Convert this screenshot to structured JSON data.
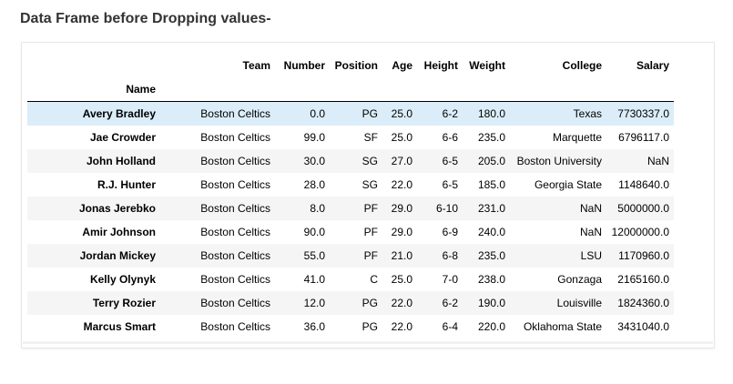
{
  "heading": "Data Frame before Dropping values-",
  "table": {
    "index_name": "Name",
    "columns": [
      "Team",
      "Number",
      "Position",
      "Age",
      "Height",
      "Weight",
      "College",
      "Salary"
    ],
    "rows": [
      {
        "name": "Avery Bradley",
        "cells": [
          "Boston Celtics",
          "0.0",
          "PG",
          "25.0",
          "6-2",
          "180.0",
          "Texas",
          "7730337.0"
        ]
      },
      {
        "name": "Jae Crowder",
        "cells": [
          "Boston Celtics",
          "99.0",
          "SF",
          "25.0",
          "6-6",
          "235.0",
          "Marquette",
          "6796117.0"
        ]
      },
      {
        "name": "John Holland",
        "cells": [
          "Boston Celtics",
          "30.0",
          "SG",
          "27.0",
          "6-5",
          "205.0",
          "Boston University",
          "NaN"
        ]
      },
      {
        "name": "R.J. Hunter",
        "cells": [
          "Boston Celtics",
          "28.0",
          "SG",
          "22.0",
          "6-5",
          "185.0",
          "Georgia State",
          "1148640.0"
        ]
      },
      {
        "name": "Jonas Jerebko",
        "cells": [
          "Boston Celtics",
          "8.0",
          "PF",
          "29.0",
          "6-10",
          "231.0",
          "NaN",
          "5000000.0"
        ]
      },
      {
        "name": "Amir Johnson",
        "cells": [
          "Boston Celtics",
          "90.0",
          "PF",
          "29.0",
          "6-9",
          "240.0",
          "NaN",
          "12000000.0"
        ]
      },
      {
        "name": "Jordan Mickey",
        "cells": [
          "Boston Celtics",
          "55.0",
          "PF",
          "21.0",
          "6-8",
          "235.0",
          "LSU",
          "1170960.0"
        ]
      },
      {
        "name": "Kelly Olynyk",
        "cells": [
          "Boston Celtics",
          "41.0",
          "C",
          "25.0",
          "7-0",
          "238.0",
          "Gonzaga",
          "2165160.0"
        ]
      },
      {
        "name": "Terry Rozier",
        "cells": [
          "Boston Celtics",
          "12.0",
          "PG",
          "22.0",
          "6-2",
          "190.0",
          "Louisville",
          "1824360.0"
        ]
      },
      {
        "name": "Marcus Smart",
        "cells": [
          "Boston Celtics",
          "36.0",
          "PG",
          "22.0",
          "6-4",
          "220.0",
          "Oklahoma State",
          "3431040.0"
        ]
      }
    ]
  }
}
